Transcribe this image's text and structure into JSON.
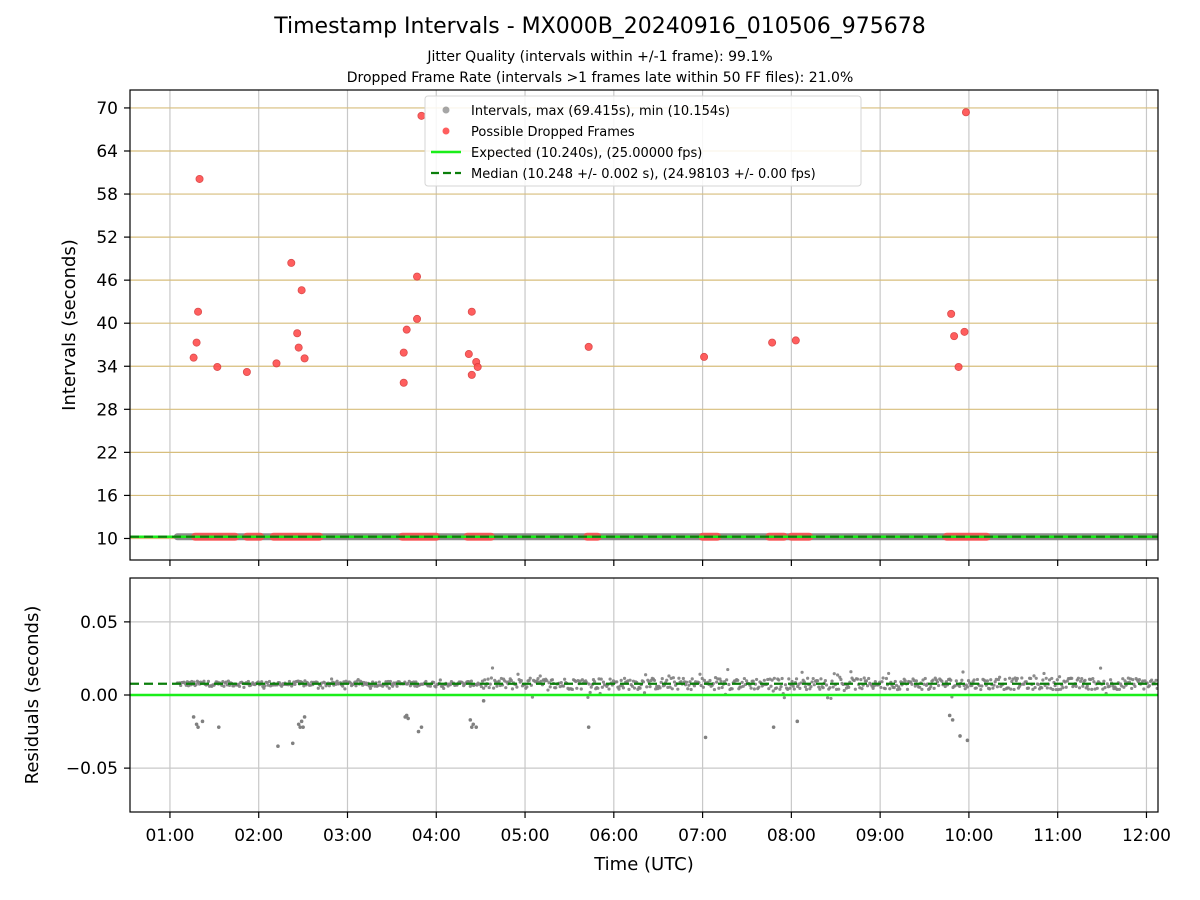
{
  "chart_data": [
    {
      "type": "scatter",
      "title": "Timestamp Intervals - MX000B_20240916_010506_975678",
      "subtitle": [
        "Jitter Quality (intervals within +/-1 frame): 99.1%",
        "Dropped Frame Rate (intervals >1 frames late within 50 FF files): 21.0%"
      ],
      "ylabel": "Intervals (seconds)",
      "xlabel": "",
      "ylim": [
        7,
        72.5
      ],
      "xlim_hours": [
        0.55,
        12.13
      ],
      "yticks": [
        10,
        16,
        22,
        28,
        34,
        40,
        46,
        52,
        58,
        64,
        70
      ],
      "ytick_labels": [
        "10",
        "16",
        "22",
        "28",
        "34",
        "40",
        "46",
        "52",
        "58",
        "64",
        "70"
      ],
      "grid": true,
      "legend": {
        "placement": "upper-center",
        "entries": [
          "Intervals, max (69.415s), min (10.154s)",
          "Possible Dropped Frames",
          "Expected (10.240s), (25.00000 fps)",
          "Median (10.248 +/- 0.002 s), (24.98103 +/- 0.00 fps)"
        ]
      },
      "expected_line": 10.24,
      "median_line": 10.248,
      "intervals_series": {
        "name": "Intervals, max (69.415s), min (10.154s)",
        "x_range": [
          "01:05",
          "12:08"
        ],
        "y": 10.24
      },
      "dropped_frames": {
        "name": "Possible Dropped Frames",
        "points": [
          {
            "x": "01:16",
            "y": 35.2
          },
          {
            "x": "01:18",
            "y": 37.3
          },
          {
            "x": "01:19",
            "y": 41.6
          },
          {
            "x": "01:20",
            "y": 60.1
          },
          {
            "x": "01:32",
            "y": 33.9
          },
          {
            "x": "01:52",
            "y": 33.2
          },
          {
            "x": "02:12",
            "y": 34.4
          },
          {
            "x": "02:22",
            "y": 48.4
          },
          {
            "x": "02:26",
            "y": 38.6
          },
          {
            "x": "02:27",
            "y": 36.6
          },
          {
            "x": "02:29",
            "y": 44.6
          },
          {
            "x": "02:31",
            "y": 35.1
          },
          {
            "x": "03:38",
            "y": 35.9
          },
          {
            "x": "03:38",
            "y": 31.7
          },
          {
            "x": "03:40",
            "y": 39.1
          },
          {
            "x": "03:47",
            "y": 40.6
          },
          {
            "x": "03:47",
            "y": 46.5
          },
          {
            "x": "03:50",
            "y": 68.9
          },
          {
            "x": "04:22",
            "y": 35.7
          },
          {
            "x": "04:24",
            "y": 41.6
          },
          {
            "x": "04:24",
            "y": 32.8
          },
          {
            "x": "04:27",
            "y": 34.6
          },
          {
            "x": "04:28",
            "y": 33.9
          },
          {
            "x": "05:43",
            "y": 36.7
          },
          {
            "x": "07:01",
            "y": 35.3
          },
          {
            "x": "07:47",
            "y": 37.3
          },
          {
            "x": "08:03",
            "y": 37.6
          },
          {
            "x": "09:48",
            "y": 41.3
          },
          {
            "x": "09:50",
            "y": 38.2
          },
          {
            "x": "09:53",
            "y": 33.9
          },
          {
            "x": "09:57",
            "y": 38.8
          },
          {
            "x": "09:58",
            "y": 69.4
          }
        ],
        "baseline_runs_at_10": [
          [
            "01:17",
            "01:44"
          ],
          [
            "01:52",
            "02:01"
          ],
          [
            "02:10",
            "02:41"
          ],
          [
            "03:37",
            "04:00"
          ],
          [
            "04:21",
            "04:37"
          ],
          [
            "05:42",
            "05:49"
          ],
          [
            "07:00",
            "07:10"
          ],
          [
            "07:45",
            "07:55"
          ],
          [
            "08:00",
            "08:12"
          ],
          [
            "09:45",
            "10:12"
          ]
        ]
      }
    },
    {
      "type": "scatter",
      "title": "",
      "xlabel": "Time (UTC)",
      "ylabel": "Residuals (seconds)",
      "ylim": [
        -0.08,
        0.08
      ],
      "yticks": [
        -0.05,
        0.0,
        0.05
      ],
      "ytick_labels": [
        "−0.05",
        "0.00",
        "0.05"
      ],
      "xticks": [
        "01:00",
        "02:00",
        "03:00",
        "04:00",
        "05:00",
        "06:00",
        "07:00",
        "08:00",
        "09:00",
        "10:00",
        "11:00",
        "12:00"
      ],
      "grid": true,
      "zero_line": 0.0,
      "median_residual": 0.0077,
      "outliers": [
        {
          "x": "01:16",
          "y": -0.015
        },
        {
          "x": "01:18",
          "y": -0.02
        },
        {
          "x": "01:19",
          "y": -0.022
        },
        {
          "x": "01:22",
          "y": -0.018
        },
        {
          "x": "01:33",
          "y": -0.022
        },
        {
          "x": "02:13",
          "y": -0.035
        },
        {
          "x": "02:23",
          "y": -0.033
        },
        {
          "x": "02:27",
          "y": -0.02
        },
        {
          "x": "02:28",
          "y": -0.022
        },
        {
          "x": "02:29",
          "y": -0.018
        },
        {
          "x": "02:30",
          "y": -0.022
        },
        {
          "x": "02:31",
          "y": -0.015
        },
        {
          "x": "03:39",
          "y": -0.015
        },
        {
          "x": "03:40",
          "y": -0.014
        },
        {
          "x": "03:41",
          "y": -0.016
        },
        {
          "x": "03:48",
          "y": -0.025
        },
        {
          "x": "03:50",
          "y": -0.022
        },
        {
          "x": "04:23",
          "y": -0.017
        },
        {
          "x": "04:24",
          "y": -0.022
        },
        {
          "x": "04:25",
          "y": -0.02
        },
        {
          "x": "04:27",
          "y": -0.022
        },
        {
          "x": "04:32",
          "y": -0.004
        },
        {
          "x": "05:43",
          "y": -0.022
        },
        {
          "x": "07:02",
          "y": -0.029
        },
        {
          "x": "07:48",
          "y": -0.022
        },
        {
          "x": "08:04",
          "y": -0.018
        },
        {
          "x": "09:47",
          "y": -0.014
        },
        {
          "x": "09:49",
          "y": -0.017
        },
        {
          "x": "09:54",
          "y": -0.028
        },
        {
          "x": "09:59",
          "y": -0.031
        }
      ]
    }
  ],
  "colors": {
    "interval_points": "#808080",
    "dropped_points": "#ff4d4d",
    "expected": "#1aee1a",
    "median": "#0b7f0b",
    "h_grid_top": "#d7be7c",
    "grid": "#c8c8c8"
  }
}
